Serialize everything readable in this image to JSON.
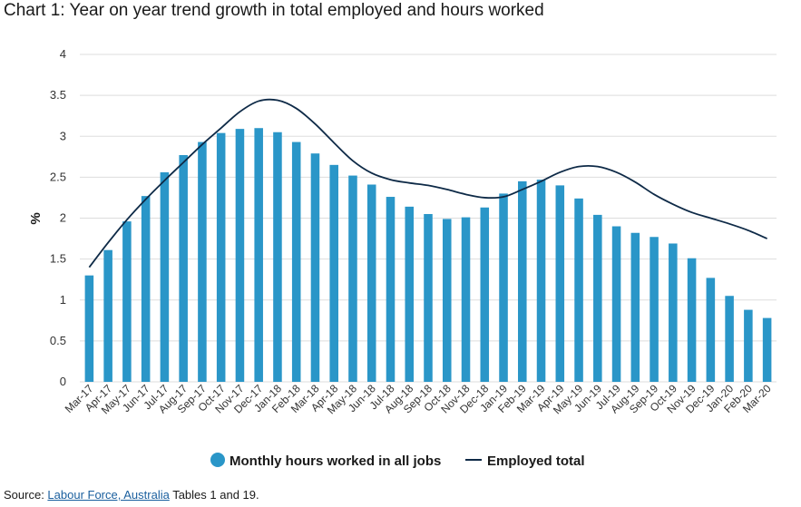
{
  "title": "Chart 1: Year on year trend growth in total employed and hours worked",
  "colors": {
    "bar": "#2a96c8",
    "line": "#0e2a47",
    "grid": "#dddddd"
  },
  "source": {
    "prefix": "Source: ",
    "link": "Labour Force, Australia",
    "suffix": " Tables 1 and 19."
  },
  "chart_data": {
    "type": "bar",
    "ylabel": "%",
    "xlabel": "",
    "ylim": [
      0,
      4
    ],
    "yticks": [
      "0",
      "0.5",
      "1",
      "1.5",
      "2",
      "2.5",
      "3",
      "3.5",
      "4"
    ],
    "grid": true,
    "legend_position": "bottom",
    "categories": [
      "Mar-17",
      "Apr-17",
      "May-17",
      "Jun-17",
      "Jul-17",
      "Aug-17",
      "Sep-17",
      "Oct-17",
      "Nov-17",
      "Dec-17",
      "Jan-18",
      "Feb-18",
      "Mar-18",
      "Apr-18",
      "May-18",
      "Jun-18",
      "Jul-18",
      "Aug-18",
      "Sep-18",
      "Oct-18",
      "Nov-18",
      "Dec-18",
      "Jan-19",
      "Feb-19",
      "Mar-19",
      "Apr-19",
      "May-19",
      "Jun-19",
      "Jul-19",
      "Aug-19",
      "Sep-19",
      "Oct-19",
      "Nov-19",
      "Dec-19",
      "Jan-20",
      "Feb-20",
      "Mar-20"
    ],
    "series": [
      {
        "name": "Monthly hours worked in all jobs",
        "type": "bar",
        "values": [
          1.3,
          1.61,
          1.96,
          2.27,
          2.56,
          2.77,
          2.93,
          3.04,
          3.09,
          3.1,
          3.05,
          2.93,
          2.79,
          2.65,
          2.52,
          2.41,
          2.26,
          2.14,
          2.05,
          1.99,
          2.01,
          2.13,
          2.3,
          2.45,
          2.47,
          2.4,
          2.24,
          2.04,
          1.9,
          1.82,
          1.77,
          1.69,
          1.51,
          1.27,
          1.05,
          0.88,
          0.78
        ]
      },
      {
        "name": "Employed total",
        "type": "line",
        "values": [
          1.4,
          1.7,
          1.98,
          2.23,
          2.46,
          2.68,
          2.9,
          3.1,
          3.3,
          3.43,
          3.44,
          3.34,
          3.15,
          2.92,
          2.7,
          2.55,
          2.47,
          2.43,
          2.4,
          2.35,
          2.29,
          2.25,
          2.26,
          2.35,
          2.45,
          2.56,
          2.63,
          2.63,
          2.56,
          2.44,
          2.29,
          2.17,
          2.07,
          2.0,
          1.93,
          1.85,
          1.75
        ]
      }
    ]
  }
}
